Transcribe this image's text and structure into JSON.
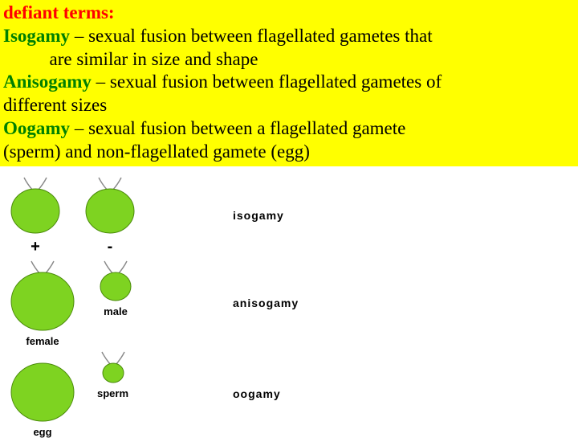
{
  "textblock": {
    "bg": "#ffff00",
    "heading": "defiant terms:",
    "heading_color": "#ff0000",
    "terms": [
      {
        "name": "Isogamy",
        "color": "#008000",
        "def1": " – sexual fusion between flagellated gametes that",
        "def2": "are similar in size and shape",
        "indent": "          "
      },
      {
        "name": "Anisogamy",
        "color": "#008000",
        "def1": " – sexual fusion between flagellated gametes of",
        "def2": "different sizes",
        "indent": ""
      },
      {
        "name": "Oogamy",
        "color": "#008000",
        "def1": " – sexual fusion between a flagellated gamete",
        "def2": "(sperm) and non-flagellated gamete (egg)",
        "indent": ""
      }
    ]
  },
  "diagram": {
    "cell_fill": "#7ed321",
    "cell_stroke": "#4a8a0a",
    "flagella_color": "#888888",
    "rows": [
      {
        "label": "isogamy",
        "cells": [
          {
            "w": 60,
            "h": 55,
            "flagella": true,
            "sublabel": "+"
          },
          {
            "w": 60,
            "h": 55,
            "flagella": true,
            "sublabel": "-"
          }
        ]
      },
      {
        "label": "anisogamy",
        "cells": [
          {
            "w": 78,
            "h": 72,
            "flagella": true,
            "sublabel": "female"
          },
          {
            "w": 38,
            "h": 35,
            "flagella": true,
            "sublabel": "male"
          }
        ]
      },
      {
        "label": "oogamy",
        "cells": [
          {
            "w": 78,
            "h": 72,
            "flagella": false,
            "sublabel": "egg"
          },
          {
            "w": 26,
            "h": 24,
            "flagella": true,
            "sublabel": "sperm"
          }
        ]
      }
    ]
  }
}
